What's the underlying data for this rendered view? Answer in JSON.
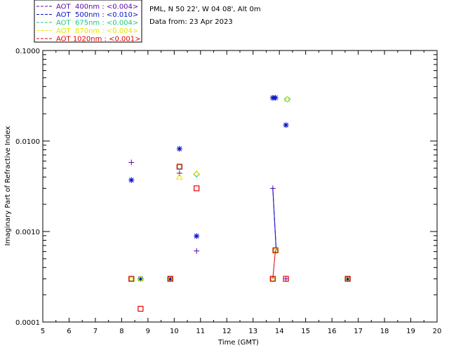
{
  "chart_data": {
    "type": "scatter",
    "header": {
      "location": "PML, N 50 22', W 04 08', Alt 0m",
      "date": "Data from: 23 Apr 2023"
    },
    "xlabel": "Time (GMT)",
    "ylabel": "Imaginary Part of Refractive Index",
    "xlim": [
      5,
      20
    ],
    "ylim": [
      0.0001,
      0.1
    ],
    "yscale": "log",
    "x_ticks": [
      "5",
      "6",
      "7",
      "8",
      "9",
      "10",
      "11",
      "12",
      "13",
      "14",
      "15",
      "16",
      "17",
      "18",
      "19",
      "20"
    ],
    "y_ticks": [
      "0.0001",
      "0.0010",
      "0.0100",
      "0.1000"
    ],
    "grid": false,
    "legend_position": "top-left, above plot",
    "series": [
      {
        "name": "AOT  400nm : <0.004>",
        "color": "#5a0aa0",
        "marker": "plus",
        "points": [
          [
            8.37,
            0.0058
          ],
          [
            9.85,
            0.0003
          ],
          [
            10.2,
            0.0044
          ],
          [
            10.85,
            0.00061
          ],
          [
            13.75,
            0.003
          ],
          [
            14.25,
            0.0003
          ],
          [
            16.6,
            0.0003
          ]
        ],
        "line_segments": [
          [
            [
              13.75,
              0.003
            ],
            [
              13.88,
              0.00062
            ]
          ]
        ]
      },
      {
        "name": "AOT  500nm : <0.010>",
        "color": "#0a14c8",
        "marker": "asterisk",
        "points": [
          [
            8.37,
            0.0037
          ],
          [
            8.72,
            0.0003
          ],
          [
            9.85,
            0.0003
          ],
          [
            10.2,
            0.0082
          ],
          [
            10.85,
            0.00089
          ],
          [
            13.75,
            0.03
          ],
          [
            13.85,
            0.03
          ],
          [
            14.25,
            0.015
          ],
          [
            16.6,
            0.0003
          ]
        ],
        "line_segments": [
          [
            [
              13.75,
              0.003
            ],
            [
              13.88,
              0.00062
            ]
          ]
        ]
      },
      {
        "name": "AOT  675nm : <0.004>",
        "color": "#20c878",
        "marker": "diamond",
        "points": [
          [
            8.37,
            0.0003
          ],
          [
            8.72,
            0.0003
          ],
          [
            9.85,
            0.0003
          ],
          [
            10.2,
            0.0052
          ],
          [
            10.85,
            0.0043
          ],
          [
            13.75,
            0.0003
          ],
          [
            13.85,
            0.00062
          ],
          [
            14.3,
            0.029
          ],
          [
            16.6,
            0.0003
          ]
        ],
        "line_segments": []
      },
      {
        "name": "AOT  870nm : <0.004>",
        "color": "#e6e600",
        "marker": "triangle",
        "points": [
          [
            8.37,
            0.0003
          ],
          [
            8.72,
            0.0003
          ],
          [
            9.85,
            0.0003
          ],
          [
            10.2,
            0.004
          ],
          [
            10.85,
            0.0044
          ],
          [
            13.75,
            0.0003
          ],
          [
            13.85,
            0.00062
          ],
          [
            14.3,
            0.029
          ],
          [
            16.6,
            0.0003
          ]
        ],
        "line_segments": []
      },
      {
        "name": "AOT 1020nm : <0.001>",
        "color": "#e00000",
        "marker": "square",
        "points": [
          [
            8.37,
            0.0003
          ],
          [
            8.72,
            0.00014
          ],
          [
            9.85,
            0.0003
          ],
          [
            10.2,
            0.0052
          ],
          [
            10.85,
            0.003
          ],
          [
            13.75,
            0.0003
          ],
          [
            13.85,
            0.00062
          ],
          [
            14.25,
            0.0003
          ],
          [
            16.6,
            0.0003
          ]
        ],
        "line_segments": [
          [
            [
              13.75,
              0.0003
            ],
            [
              13.85,
              0.00062
            ]
          ]
        ]
      }
    ]
  }
}
